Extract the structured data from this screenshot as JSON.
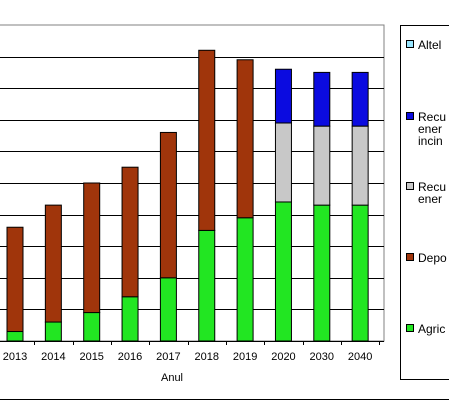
{
  "chart_data": {
    "type": "bar",
    "stacked": true,
    "title": "",
    "xlabel": "Anul",
    "ylabel": "",
    "grid": true,
    "legend_position": "right",
    "categories": [
      "2013",
      "2014",
      "2015",
      "2016",
      "2017",
      "2018",
      "2019",
      "2020",
      "2030",
      "2040"
    ],
    "series": [
      {
        "name": "Agric",
        "color": "#22e622",
        "values": [
          3,
          6,
          9,
          14,
          20,
          35,
          39,
          44,
          43,
          43
        ]
      },
      {
        "name": "Depo",
        "color": "#a0350b",
        "values": [
          33,
          37,
          41,
          41,
          46,
          57,
          50,
          0,
          0,
          0
        ]
      },
      {
        "name": "Recu ener",
        "color": "#c8c8c8",
        "values": [
          0,
          0,
          0,
          0,
          0,
          0,
          0,
          25,
          25,
          25
        ]
      },
      {
        "name": "Recu ener incin",
        "color": "#0b0be0",
        "values": [
          0,
          0,
          0,
          0,
          0,
          0,
          0,
          17,
          17,
          17
        ]
      },
      {
        "name": "Altel",
        "color": "#99e6ff",
        "values": [
          0,
          0,
          0,
          0,
          0,
          0,
          0,
          0,
          0,
          0
        ]
      }
    ],
    "ylim": [
      0,
      100
    ]
  },
  "legend_items": [
    {
      "label_lines": [
        "Altel"
      ],
      "color": "#99e6ff"
    },
    {
      "label_lines": [
        "Recu",
        "ener",
        "incin"
      ],
      "color": "#0b0be0"
    },
    {
      "label_lines": [
        "Recu",
        "ener"
      ],
      "color": "#c8c8c8"
    },
    {
      "label_lines": [
        "Depo"
      ],
      "color": "#a0350b"
    },
    {
      "label_lines": [
        "Agric"
      ],
      "color": "#22e622"
    }
  ]
}
